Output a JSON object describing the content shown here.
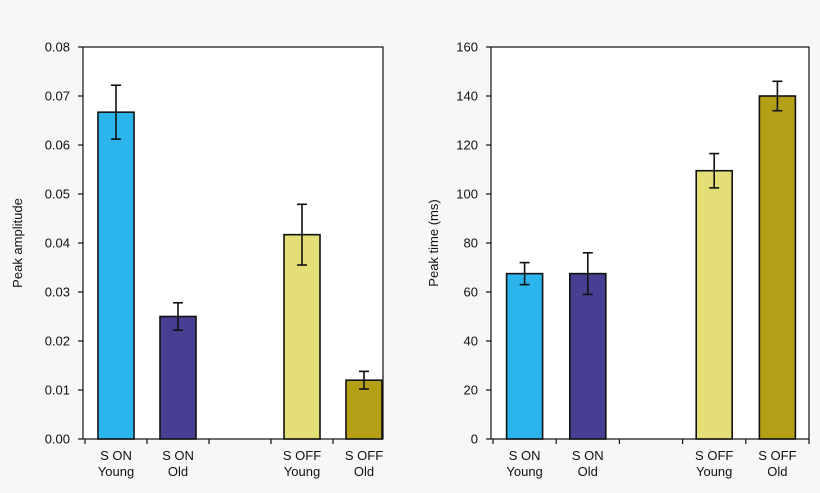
{
  "chart_data": [
    {
      "type": "bar",
      "ylabel": "Peak amplitude",
      "ylim": [
        0,
        0.08
      ],
      "yticks": [
        "0.00",
        "0.01",
        "0.02",
        "0.03",
        "0.04",
        "0.05",
        "0.06",
        "0.07",
        "0.08"
      ],
      "ytick_values": [
        0,
        0.01,
        0.02,
        0.03,
        0.04,
        0.05,
        0.06,
        0.07,
        0.08
      ],
      "categories": [
        [
          "S ON",
          "Young"
        ],
        [
          "S ON",
          "Old"
        ],
        [
          "",
          ""
        ],
        [
          "S OFF",
          "Young"
        ],
        [
          "S OFF",
          "Old"
        ]
      ],
      "values": [
        0.0667,
        0.025,
        null,
        0.0417,
        0.012
      ],
      "errors": [
        0.0055,
        0.0028,
        null,
        0.0062,
        0.0018
      ],
      "colors": [
        "#2cb5ec",
        "#463f92",
        null,
        "#e3df76",
        "#b59f17"
      ],
      "grid": false
    },
    {
      "type": "bar",
      "ylabel": "Peak time (ms)",
      "ylim": [
        0,
        160
      ],
      "yticks": [
        "0",
        "20",
        "40",
        "60",
        "80",
        "100",
        "120",
        "140",
        "160"
      ],
      "ytick_values": [
        0,
        20,
        40,
        60,
        80,
        100,
        120,
        140,
        160
      ],
      "categories": [
        [
          "S ON",
          "Young"
        ],
        [
          "S ON",
          "Old"
        ],
        [
          "",
          ""
        ],
        [
          "S OFF",
          "Young"
        ],
        [
          "S OFF",
          "Old"
        ]
      ],
      "values": [
        67.5,
        67.5,
        null,
        109.5,
        140
      ],
      "errors": [
        4.5,
        8.5,
        null,
        7,
        6
      ],
      "colors": [
        "#2cb5ec",
        "#463f92",
        null,
        "#e3df76",
        "#b59f17"
      ],
      "grid": false
    }
  ]
}
